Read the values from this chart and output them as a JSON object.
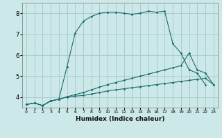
{
  "xlabel": "Humidex (Indice chaleur)",
  "bg_color": "#cce8e8",
  "grid_color": "#aacccc",
  "line_color": "#1a6b6b",
  "xlim": [
    -0.5,
    23.5
  ],
  "ylim": [
    3.5,
    8.5
  ],
  "yticks": [
    4,
    5,
    6,
    7,
    8
  ],
  "xticks": [
    0,
    1,
    2,
    3,
    4,
    5,
    6,
    7,
    8,
    9,
    10,
    11,
    12,
    13,
    14,
    15,
    16,
    17,
    18,
    19,
    20,
    21,
    22,
    23
  ],
  "line1_x": [
    0,
    1,
    2,
    3,
    4,
    5,
    6,
    7,
    8,
    9,
    10,
    11,
    12,
    13,
    14,
    15,
    16,
    17,
    18,
    19,
    20,
    21,
    22
  ],
  "line1_y": [
    3.65,
    3.72,
    3.6,
    3.82,
    3.9,
    5.45,
    7.05,
    7.62,
    7.85,
    8.0,
    8.05,
    8.05,
    8.0,
    7.95,
    8.0,
    8.1,
    8.05,
    8.1,
    6.55,
    6.1,
    5.3,
    5.15,
    4.6
  ],
  "line2_x": [
    0,
    1,
    2,
    3,
    4,
    5,
    6,
    7,
    8,
    9,
    10,
    11,
    12,
    13,
    14,
    15,
    16,
    17,
    18,
    19,
    20,
    21,
    22,
    23
  ],
  "line2_y": [
    3.65,
    3.72,
    3.6,
    3.82,
    3.9,
    4.02,
    4.12,
    4.22,
    4.35,
    4.48,
    4.6,
    4.7,
    4.8,
    4.9,
    5.0,
    5.1,
    5.2,
    5.3,
    5.4,
    5.5,
    6.1,
    5.3,
    5.15,
    4.6
  ],
  "line3_x": [
    0,
    1,
    2,
    3,
    4,
    5,
    6,
    7,
    8,
    9,
    10,
    11,
    12,
    13,
    14,
    15,
    16,
    17,
    18,
    19,
    20,
    21,
    22,
    23
  ],
  "line3_y": [
    3.65,
    3.72,
    3.6,
    3.82,
    3.9,
    4.0,
    4.05,
    4.08,
    4.15,
    4.22,
    4.3,
    4.35,
    4.4,
    4.45,
    4.5,
    4.55,
    4.6,
    4.65,
    4.7,
    4.75,
    4.8,
    4.85,
    4.9,
    4.6
  ]
}
